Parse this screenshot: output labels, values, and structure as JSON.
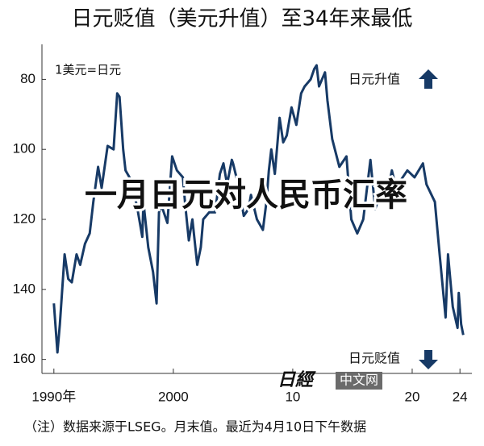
{
  "chart_data": {
    "type": "line",
    "title": "日元贬值（美元升值）至34年来最低",
    "y_label": "1美元=日元",
    "annotations": [
      "日元升值",
      "日元贬值"
    ],
    "overlay_text": "一月日元对人民币汇率",
    "note": "（注）数据来源于LSEG。月末值。最近为4月10日下午数据",
    "logo_mark": "日經",
    "logo_text": "中文网",
    "xlim": [
      1989,
      2025
    ],
    "xticks": [
      {
        "value": 1990,
        "label": "1990年"
      },
      2000,
      {
        "value": 2010,
        "label": "10"
      },
      {
        "value": 2020,
        "label": "20"
      },
      {
        "value": 2024,
        "label": "24"
      }
    ],
    "ylim": [
      164,
      70
    ],
    "yticks": [
      80,
      100,
      120,
      140,
      160
    ],
    "inverted": true,
    "grid": false,
    "series": [
      {
        "color": "#173a66",
        "x": [
          1990.0,
          1990.3,
          1990.5,
          1990.9,
          1991.2,
          1991.5,
          1991.9,
          1992.2,
          1992.6,
          1993.0,
          1993.3,
          1993.7,
          1994.0,
          1994.5,
          1995.0,
          1995.3,
          1995.5,
          1995.8,
          1996.0,
          1996.5,
          1997.0,
          1997.4,
          1997.5,
          1997.9,
          1998.3,
          1998.6,
          1998.8,
          1999.0,
          1999.5,
          1999.9,
          2000.3,
          2000.8,
          2001.0,
          2001.3,
          2001.6,
          2002.0,
          2002.3,
          2002.5,
          2003.0,
          2003.5,
          2003.9,
          2004.2,
          2004.5,
          2004.9,
          2005.0,
          2005.5,
          2005.9,
          2006.3,
          2006.5,
          2007.0,
          2007.5,
          2007.8,
          2008.0,
          2008.2,
          2008.5,
          2008.9,
          2009.2,
          2009.5,
          2009.9,
          2010.3,
          2010.7,
          2011.0,
          2011.5,
          2011.8,
          2012.0,
          2012.2,
          2012.7,
          2012.9,
          2013.3,
          2013.9,
          2014.5,
          2014.9,
          2015.4,
          2015.9,
          2016.5,
          2016.9,
          2017.5,
          2017.9,
          2018.3,
          2018.8,
          2019.0,
          2019.6,
          2020.2,
          2020.9,
          2021.2,
          2021.9,
          2022.3,
          2022.8,
          2023.0,
          2023.4,
          2023.8,
          2023.9,
          2024.1,
          2024.28
        ],
        "values": [
          144,
          158,
          150,
          130,
          137,
          138,
          130,
          133,
          127,
          124,
          115,
          105,
          111,
          99,
          100,
          84,
          85,
          100,
          106,
          109,
          117,
          125,
          115,
          128,
          135,
          144,
          118,
          116,
          121,
          102,
          106,
          108,
          116,
          126,
          120,
          133,
          128,
          120,
          118,
          118,
          107,
          104,
          110,
          103,
          104,
          111,
          119,
          117,
          113,
          120,
          123,
          115,
          106,
          100,
          107,
          91,
          98,
          96,
          88,
          93,
          84,
          82,
          80,
          77,
          76,
          82,
          78,
          86,
          97,
          105,
          102,
          120,
          124,
          120,
          103,
          117,
          111,
          113,
          106,
          113,
          109,
          106,
          108,
          104,
          110,
          115,
          130,
          148,
          130,
          145,
          151,
          141,
          150,
          153
        ]
      }
    ]
  }
}
